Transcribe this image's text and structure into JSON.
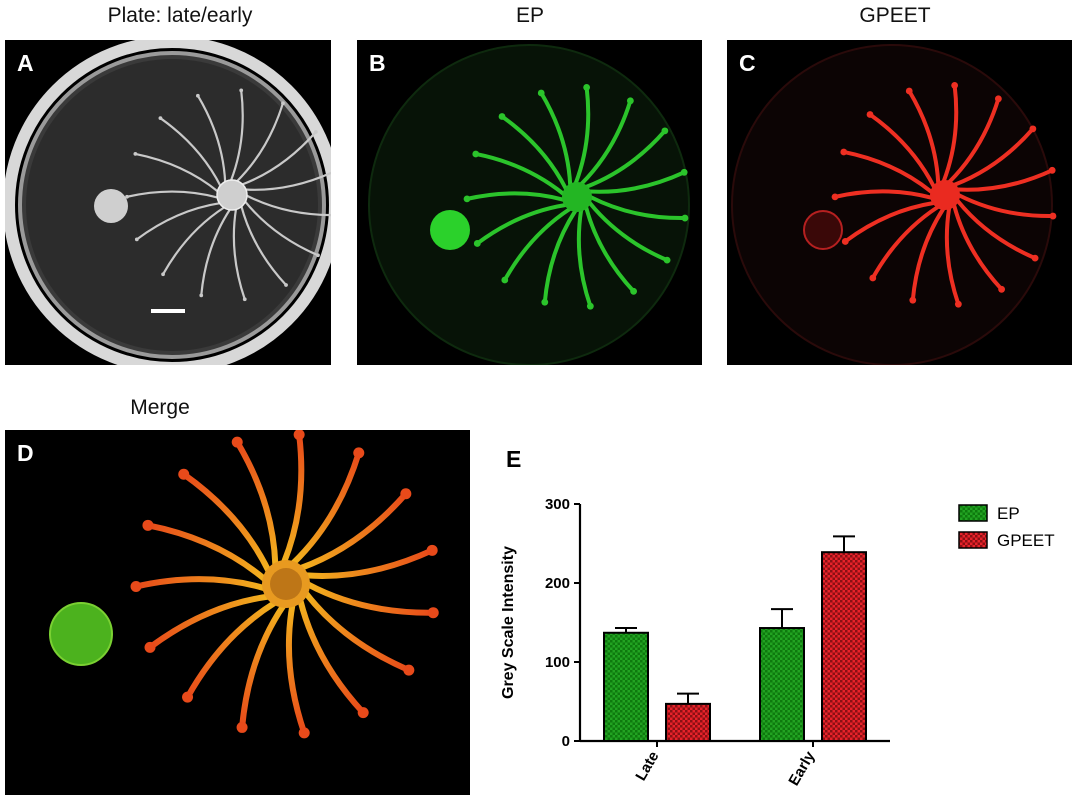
{
  "panels": {
    "a": {
      "letter": "A",
      "title": "Plate: late/early"
    },
    "b": {
      "letter": "B",
      "title": "EP"
    },
    "c": {
      "letter": "C",
      "title": "GPEET"
    },
    "d": {
      "letter": "D",
      "title": "Merge"
    },
    "e": {
      "letter": "E"
    }
  },
  "colors": {
    "ep": "#2bb52b",
    "gpeet": "#e8241b",
    "merge_tip": "#e84a1a",
    "merge_base": "#f2b21e",
    "merge_spot": "#4cb21e"
  },
  "chart_data": {
    "type": "bar",
    "categories": [
      "Late",
      "Early"
    ],
    "series": [
      {
        "name": "EP",
        "values": [
          137,
          143
        ],
        "errors": [
          6,
          24
        ],
        "color": "#22a322"
      },
      {
        "name": "GPEET",
        "values": [
          47,
          239
        ],
        "errors": [
          13,
          20
        ],
        "color": "#d8222a"
      }
    ],
    "ylabel": "Grey Scale Intensity",
    "xlabel": "",
    "ylim": [
      0,
      300
    ],
    "yticks": [
      0,
      100,
      200,
      300
    ],
    "legend": "right"
  }
}
